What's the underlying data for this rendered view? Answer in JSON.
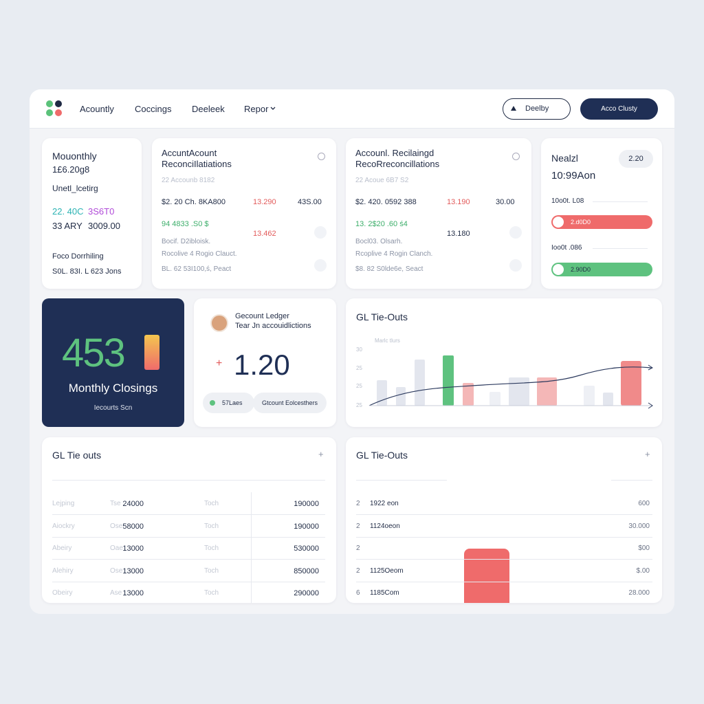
{
  "nav": {
    "items": [
      "Acountly",
      "Coccings",
      "Deeleek",
      "Repor"
    ],
    "buttons": [
      "Deelby",
      "Acco Clusty"
    ]
  },
  "summary_card": {
    "title": "Mouonthly",
    "subtitle": "1£6.20g8",
    "label": "Unetl_lcetirg",
    "rows": [
      [
        "22. 40C",
        "3S6T0"
      ],
      [
        "33 ARY",
        "3009.00"
      ]
    ],
    "footer_label": "Foco Dorrhiling",
    "footer_value": "S0L. 83I. L 623 Jons"
  },
  "recon_cards": [
    {
      "title": "AccuntAcount ReconciIlatiations",
      "subtitle": "22 Accounb 8182",
      "rows": [
        [
          "$2. 20 Ch. 8KA800",
          "13.290",
          "43S.00"
        ],
        [
          "94 4833 .S0 $",
          "13.462"
        ]
      ],
      "notes": [
        "Bocif. D2ibloisk.",
        "Rocolive 4 Rogio Clauct.",
        "BL. 62 53I100,ś, Peact"
      ]
    },
    {
      "title": "Accounl. Recilaingd RecoRreconcillations",
      "subtitle": "22 Acoue 6B7 S2",
      "rows": [
        [
          "$2. 420. 0592 388",
          "13.190",
          "30.00"
        ],
        [
          "13. 2$20 .60 ś4",
          "13.180"
        ]
      ],
      "notes": [
        "Bocl03. Olsarh.",
        "Rcoplive 4 Rogin Clanch.",
        "$8. 82 S0lde6e, Seact"
      ]
    }
  ],
  "status_card": {
    "title": "Nealzl",
    "value": "10:99Aon",
    "badge": "2.20",
    "bars": [
      {
        "label": "10o0t. L08",
        "value": "2.d0D0"
      },
      {
        "label": "Ioo0t .086",
        "value": "2.90D0"
      }
    ]
  },
  "kpi_card": {
    "value": "453",
    "label": "Monthly Closings",
    "link": "Iecourts Scn"
  },
  "ledger_card": {
    "title": "Gecount Ledger",
    "subtitle": "Tear Jn accouidlictions",
    "sign": "+",
    "value": "1.20",
    "chips": [
      "57Laes",
      "Gtcount Eolcesthers"
    ]
  },
  "chart_card": {
    "title": "GL Tie-Outs",
    "legend": "Marlc tlurs",
    "y_labels": [
      "30",
      "25",
      "25",
      "25"
    ]
  },
  "table_left": {
    "title": "GL Tie outs",
    "add_icon": "+",
    "rows": [
      [
        "Lejping",
        "Tse",
        "24000",
        "Toch",
        "190000"
      ],
      [
        "Aiockry",
        "Ose",
        "58000",
        "Toch",
        "190000"
      ],
      [
        "Abeiry",
        "Oae",
        "13000",
        "Toch",
        "530000"
      ],
      [
        "Alehiry",
        "Ose",
        "13000",
        "Toch",
        "850000"
      ],
      [
        "Obeiry",
        "Ase",
        "13000",
        "Toch",
        "290000"
      ]
    ]
  },
  "table_right": {
    "title": "GL Tie-Outs",
    "add_icon": "+",
    "rows": [
      [
        "2",
        "1922 eon",
        "600"
      ],
      [
        "2",
        "1124oeon",
        "30.000"
      ],
      [
        "2",
        "",
        "$00"
      ],
      [
        "2",
        "1125Oeom",
        "$.00"
      ],
      [
        "6",
        "1185Com",
        "28.000"
      ]
    ]
  }
}
